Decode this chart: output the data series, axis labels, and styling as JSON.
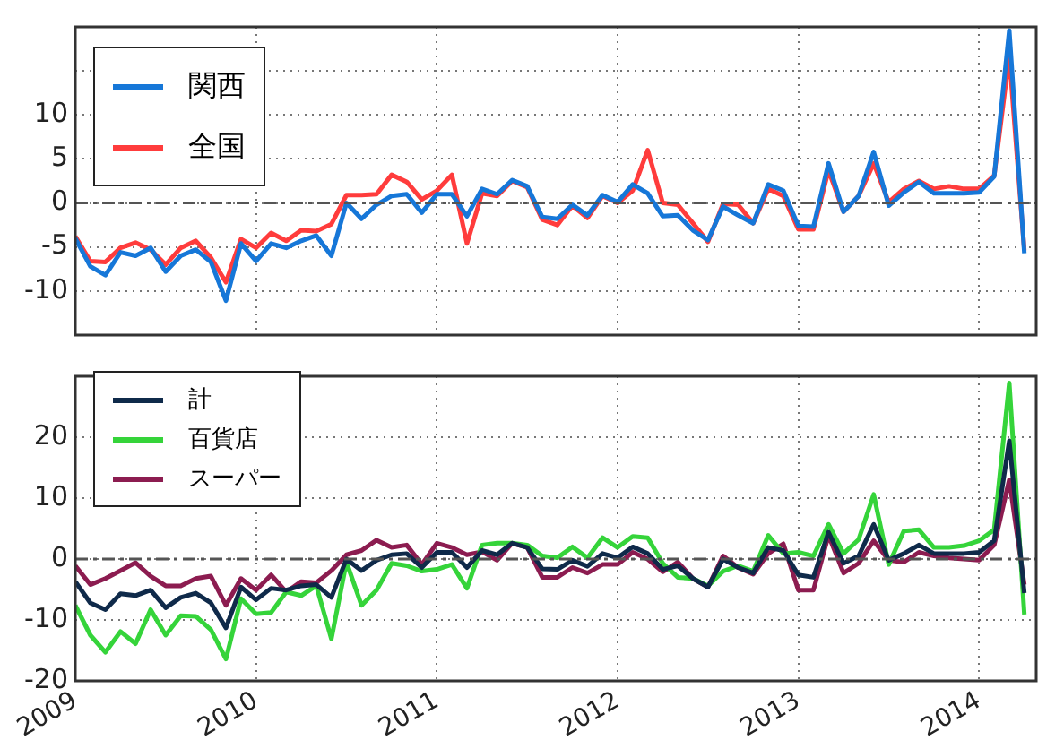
{
  "chart_data": [
    {
      "type": "line",
      "x": [
        "2009-01",
        "2009-02",
        "2009-03",
        "2009-04",
        "2009-05",
        "2009-06",
        "2009-07",
        "2009-08",
        "2009-09",
        "2009-10",
        "2009-11",
        "2009-12",
        "2010-01",
        "2010-02",
        "2010-03",
        "2010-04",
        "2010-05",
        "2010-06",
        "2010-07",
        "2010-08",
        "2010-09",
        "2010-10",
        "2010-11",
        "2010-12",
        "2011-01",
        "2011-02",
        "2011-03",
        "2011-04",
        "2011-05",
        "2011-06",
        "2011-07",
        "2011-08",
        "2011-09",
        "2011-10",
        "2011-11",
        "2011-12",
        "2012-01",
        "2012-02",
        "2012-03",
        "2012-04",
        "2012-05",
        "2012-06",
        "2012-07",
        "2012-08",
        "2012-09",
        "2012-10",
        "2012-11",
        "2012-12",
        "2013-01",
        "2013-02",
        "2013-03",
        "2013-04",
        "2013-05",
        "2013-06",
        "2013-07",
        "2013-08",
        "2013-09",
        "2013-10",
        "2013-11",
        "2013-12",
        "2014-01",
        "2014-02",
        "2014-03",
        "2014-04"
      ],
      "series": [
        {
          "name": "関西",
          "color": "#1677d8",
          "values": [
            -4,
            -7.2,
            -8.2,
            -5.6,
            -6,
            -5.1,
            -7.8,
            -6,
            -5.3,
            -6.7,
            -11.1,
            -4.6,
            -6.6,
            -4.6,
            -5.1,
            -4.3,
            -3.7,
            -6,
            0,
            -1.8,
            -0.2,
            0.8,
            1,
            -1.1,
            1,
            1,
            -1.5,
            1.6,
            1,
            2.6,
            1.9,
            -1.6,
            -1.8,
            -0.2,
            -1.4,
            0.9,
            0.1,
            2.1,
            1.1,
            -1.5,
            -1.4,
            -3.1,
            -4.2,
            -0.4,
            -1.4,
            -2.3,
            2.1,
            1.4,
            -2.6,
            -2.7,
            4.5,
            -1,
            0.8,
            5.8,
            -0.3,
            1.2,
            2.4,
            1.1,
            1.1,
            1.1,
            1.2,
            3,
            19.6,
            -5.7
          ]
        },
        {
          "name": "全国",
          "color": "#ff3c3c",
          "values": [
            -3.8,
            -6.6,
            -6.7,
            -5.1,
            -4.5,
            -5.3,
            -7,
            -5.1,
            -4.3,
            -6.2,
            -9,
            -4.1,
            -5.1,
            -3.4,
            -4.3,
            -3.1,
            -3.2,
            -2.4,
            0.9,
            0.9,
            1,
            3.2,
            2.4,
            0.4,
            1.4,
            3.2,
            -4.6,
            1.1,
            0.8,
            2.5,
            1.8,
            -1.9,
            -2.5,
            -0.3,
            -1.7,
            0.8,
            0,
            1.4,
            6,
            0,
            -0.2,
            -2.3,
            -4.4,
            -0.1,
            -0.2,
            -2.3,
            1.6,
            0.8,
            -3,
            -3,
            3.7,
            -1,
            0.8,
            4.5,
            0.1,
            1.6,
            2.5,
            1.6,
            1.9,
            1.6,
            1.6,
            3.1,
            16.7,
            -5.4
          ]
        }
      ],
      "xlim": [
        "2009-01-01",
        "2014-04-25"
      ],
      "xticks": [
        "2009",
        "2010",
        "2011",
        "2012",
        "2013",
        "2014"
      ],
      "ylim": [
        -15,
        20
      ],
      "yticks": [
        -10,
        -5,
        0,
        5,
        10,
        {
          "value": 15,
          "label": null
        }
      ],
      "tick_labels": "y",
      "grid": true,
      "legend": "top left",
      "marker": "none",
      "ref_lines": [
        {
          "axis": "y",
          "value": 0,
          "color": "#555555",
          "line_style": "dashed"
        }
      ]
    },
    {
      "type": "line",
      "x": [
        "2009-01",
        "2009-02",
        "2009-03",
        "2009-04",
        "2009-05",
        "2009-06",
        "2009-07",
        "2009-08",
        "2009-09",
        "2009-10",
        "2009-11",
        "2009-12",
        "2010-01",
        "2010-02",
        "2010-03",
        "2010-04",
        "2010-05",
        "2010-06",
        "2010-07",
        "2010-08",
        "2010-09",
        "2010-10",
        "2010-11",
        "2010-12",
        "2011-01",
        "2011-02",
        "2011-03",
        "2011-04",
        "2011-05",
        "2011-06",
        "2011-07",
        "2011-08",
        "2011-09",
        "2011-10",
        "2011-11",
        "2011-12",
        "2012-01",
        "2012-02",
        "2012-03",
        "2012-04",
        "2012-05",
        "2012-06",
        "2012-07",
        "2012-08",
        "2012-09",
        "2012-10",
        "2012-11",
        "2012-12",
        "2013-01",
        "2013-02",
        "2013-03",
        "2013-04",
        "2013-05",
        "2013-06",
        "2013-07",
        "2013-08",
        "2013-09",
        "2013-10",
        "2013-11",
        "2013-12",
        "2014-01",
        "2014-02",
        "2014-03",
        "2014-04"
      ],
      "series": [
        {
          "name": "計",
          "color": "#0f2a4a",
          "values": [
            -3.7,
            -7.2,
            -8.3,
            -5.7,
            -6,
            -5.1,
            -8,
            -6.3,
            -5.6,
            -7.2,
            -11.3,
            -4.6,
            -6.7,
            -4.8,
            -5.1,
            -4.4,
            -4.2,
            -6.3,
            0,
            -1.9,
            -0.2,
            0.7,
            0.9,
            -1.4,
            1.1,
            1.1,
            -1.4,
            1.4,
            0.7,
            2.6,
            1.9,
            -1.6,
            -1.7,
            -0.2,
            -1.2,
            0.9,
            0.2,
            2,
            0.9,
            -1.7,
            -1.1,
            -3.2,
            -4.6,
            0,
            -1.4,
            -2.3,
            1.9,
            1.4,
            -2.6,
            -3,
            4.4,
            -0.7,
            0.5,
            5.7,
            -0.2,
            0.9,
            2.3,
            0.9,
            0.9,
            0.9,
            1.1,
            3,
            19.4,
            -5.6
          ]
        },
        {
          "name": "百貨店",
          "color": "#35d43a",
          "values": [
            -7.6,
            -12.5,
            -15.3,
            -11.9,
            -13.9,
            -8.3,
            -12.5,
            -9.3,
            -9.4,
            -11.6,
            -16.4,
            -6.5,
            -9,
            -8.8,
            -5.4,
            -6,
            -4.4,
            -13.1,
            -0.5,
            -7.6,
            -5.1,
            -0.7,
            -1.1,
            -2,
            -1.7,
            -0.9,
            -4.8,
            2.3,
            2.6,
            2.6,
            2.3,
            0.5,
            0.2,
            2,
            0.2,
            3.5,
            1.9,
            3.7,
            3.5,
            -0.7,
            -3,
            -3.2,
            -4.4,
            -2,
            -1.1,
            -2,
            3.9,
            0.9,
            1.1,
            0.5,
            5.7,
            0.9,
            3.2,
            10.6,
            -0.9,
            4.6,
            4.8,
            1.9,
            1.9,
            2.2,
            3,
            4.8,
            28.9,
            -9.1
          ]
        },
        {
          "name": "スーパー",
          "color": "#8c1c50",
          "values": [
            -1.1,
            -4.2,
            -3.2,
            -1.9,
            -0.6,
            -2.8,
            -4.4,
            -4.4,
            -3.2,
            -2.8,
            -7.6,
            -3.2,
            -5.1,
            -2.6,
            -5.4,
            -3.7,
            -3.9,
            -1.9,
            0.7,
            1.4,
            3.1,
            1.9,
            2.3,
            -0.9,
            2.6,
            1.9,
            0.7,
            1.2,
            -0.2,
            2.6,
            1.9,
            -3,
            -3,
            -1.4,
            -2.3,
            -0.9,
            -0.9,
            1.1,
            0,
            -2.1,
            -0.5,
            -3.2,
            -4.6,
            0.5,
            -1.4,
            -2.5,
            0.9,
            2.5,
            -5.1,
            -5.1,
            3.9,
            -2.3,
            -0.7,
            3,
            -0.2,
            -0.5,
            1.1,
            0.5,
            0.2,
            0,
            -0.2,
            2.3,
            13,
            -4.2
          ]
        }
      ],
      "xlim": [
        "2009-01-01",
        "2014-04-25"
      ],
      "xticks": [
        "2009",
        "2010",
        "2011",
        "2012",
        "2013",
        "2014"
      ],
      "ylim": [
        -20,
        30
      ],
      "yticks": [
        -20,
        -10,
        0,
        10,
        20
      ],
      "grid": true,
      "legend": "top left",
      "marker": "none",
      "ref_lines": [
        {
          "axis": "y",
          "value": 0,
          "color": "#555555",
          "line_style": "dashed"
        }
      ]
    }
  ]
}
